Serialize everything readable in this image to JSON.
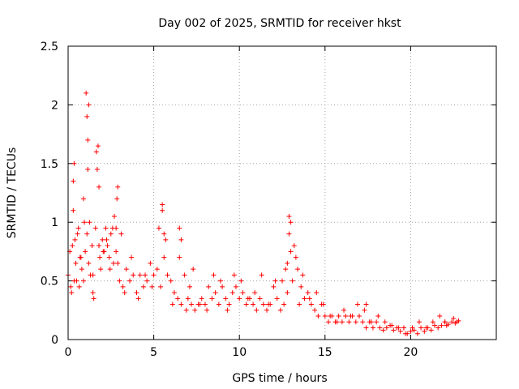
{
  "chart_data": {
    "type": "scatter",
    "title": "Day 002 of 2025, SRMTID for receiver hkst",
    "xlabel": "GPS time / hours",
    "ylabel": "SRMTID / TECUs",
    "xlim": [
      0,
      25
    ],
    "ylim": [
      0,
      2.5
    ],
    "x_ticks": [
      0,
      5,
      10,
      15,
      20
    ],
    "x_tick_labels": [
      "0",
      "5",
      "10",
      "15",
      "20"
    ],
    "y_ticks": [
      0,
      0.5,
      1,
      1.5,
      2,
      2.5
    ],
    "y_tick_labels": [
      "0",
      "0.5",
      "1",
      "1.5",
      "2",
      "2.5"
    ],
    "grid": true,
    "marker": "plus",
    "color": "#ff0000",
    "series": [
      {
        "name": "SRMTID",
        "x": [
          0.0,
          0.1,
          0.2,
          0.3,
          0.4,
          0.5,
          0.6,
          0.7,
          0.8,
          0.9,
          1.0,
          1.1,
          1.2,
          1.3,
          1.4,
          1.5,
          1.6,
          1.7,
          1.8,
          1.9,
          2.0,
          2.1,
          2.2,
          2.3,
          2.4,
          2.5,
          2.6,
          2.7,
          2.8,
          2.9,
          3.0,
          3.2,
          3.4,
          3.6,
          3.8,
          4.0,
          4.2,
          4.4,
          4.6,
          4.8,
          5.0,
          5.2,
          5.4,
          5.6,
          5.8,
          6.0,
          6.2,
          6.4,
          6.6,
          6.8,
          7.0,
          7.2,
          7.4,
          7.6,
          7.8,
          8.0,
          8.2,
          8.4,
          8.6,
          8.8,
          9.0,
          9.2,
          9.4,
          9.6,
          9.8,
          10.0,
          10.2,
          10.4,
          10.6,
          10.8,
          11.0,
          11.2,
          11.4,
          11.6,
          11.8,
          12.0,
          12.2,
          12.4,
          12.6,
          12.8,
          13.0,
          13.2,
          13.4,
          13.6,
          13.8,
          14.0,
          14.2,
          14.4,
          14.6,
          14.8,
          15.0,
          15.2,
          15.4,
          15.6,
          15.8,
          16.0,
          16.2,
          16.4,
          16.6,
          16.8,
          17.0,
          17.2,
          17.4,
          17.6,
          17.8,
          18.0,
          18.2,
          18.4,
          18.6,
          18.8,
          19.0,
          19.2,
          19.4,
          19.6,
          19.8,
          20.0,
          20.2,
          20.4,
          20.6,
          20.8,
          21.0,
          21.2,
          21.4,
          21.6,
          21.8,
          22.0,
          22.2,
          22.4,
          22.6,
          22.8,
          0.15,
          0.35,
          0.55,
          0.75,
          0.95,
          1.05,
          1.15,
          1.25,
          1.45,
          1.65,
          1.85,
          2.05,
          2.25,
          2.45,
          2.65,
          2.85,
          0.25,
          0.45,
          1.1,
          1.15,
          1.2,
          0.3,
          0.35,
          1.75,
          1.8,
          0.65,
          0.9,
          1.45,
          2.8,
          2.9,
          3.3,
          3.7,
          4.1,
          4.5,
          4.9,
          5.3,
          5.5,
          5.7,
          6.1,
          6.5,
          6.9,
          7.3,
          7.7,
          8.1,
          8.5,
          8.9,
          9.3,
          9.7,
          10.1,
          10.5,
          10.9,
          11.3,
          11.7,
          12.1,
          12.5,
          12.7,
          12.9,
          13.1,
          13.3,
          13.5,
          13.7,
          14.1,
          14.5,
          14.9,
          15.3,
          15.7,
          16.1,
          16.5,
          16.9,
          17.3,
          17.7,
          18.1,
          18.5,
          18.9,
          19.3,
          19.7,
          20.1,
          20.5,
          20.9,
          21.3,
          21.7,
          22.1,
          22.5,
          22.7,
          5.5,
          5.6,
          6.5,
          6.6,
          7.1,
          3.1,
          12.8,
          12.9,
          13.0,
          17.4,
          19.6,
          22.0
        ],
        "y": [
          0.55,
          0.75,
          0.4,
          1.1,
          0.85,
          0.5,
          0.95,
          0.7,
          0.6,
          1.2,
          0.75,
          1.9,
          0.65,
          0.55,
          0.8,
          0.35,
          0.95,
          1.45,
          0.8,
          0.6,
          0.85,
          0.75,
          0.95,
          0.8,
          0.7,
          0.9,
          0.95,
          1.05,
          0.75,
          0.65,
          0.5,
          0.45,
          0.6,
          0.5,
          0.55,
          0.4,
          0.55,
          0.45,
          0.5,
          0.65,
          0.55,
          0.6,
          0.45,
          0.7,
          0.55,
          0.5,
          0.4,
          0.35,
          0.3,
          0.55,
          0.35,
          0.3,
          0.25,
          0.3,
          0.35,
          0.3,
          0.45,
          0.35,
          0.4,
          0.3,
          0.45,
          0.35,
          0.3,
          0.4,
          0.45,
          0.35,
          0.4,
          0.3,
          0.35,
          0.3,
          0.25,
          0.35,
          0.3,
          0.25,
          0.3,
          0.45,
          0.35,
          0.25,
          0.3,
          0.4,
          0.75,
          0.8,
          0.6,
          0.45,
          0.35,
          0.4,
          0.3,
          0.25,
          0.2,
          0.3,
          0.2,
          0.15,
          0.2,
          0.15,
          0.2,
          0.15,
          0.2,
          0.15,
          0.2,
          0.15,
          0.2,
          0.15,
          0.1,
          0.15,
          0.1,
          0.15,
          0.1,
          0.08,
          0.1,
          0.12,
          0.08,
          0.1,
          0.07,
          0.1,
          0.05,
          0.07,
          0.08,
          0.05,
          0.1,
          0.07,
          0.1,
          0.08,
          0.12,
          0.1,
          0.12,
          0.15,
          0.13,
          0.15,
          0.14,
          0.16,
          0.45,
          1.5,
          0.9,
          0.7,
          1.0,
          2.1,
          1.7,
          1.0,
          0.4,
          1.6,
          0.7,
          0.75,
          0.85,
          0.6,
          0.65,
          1.2,
          0.8,
          0.65,
          0.9,
          1.45,
          2.0,
          1.35,
          0.5,
          1.65,
          1.3,
          0.45,
          0.5,
          0.55,
          0.95,
          1.3,
          0.4,
          0.7,
          0.35,
          0.55,
          0.45,
          0.95,
          1.15,
          0.85,
          0.3,
          0.7,
          0.25,
          0.6,
          0.3,
          0.25,
          0.55,
          0.5,
          0.25,
          0.55,
          0.5,
          0.35,
          0.4,
          0.55,
          0.3,
          0.5,
          0.5,
          0.6,
          1.05,
          0.5,
          0.7,
          0.3,
          0.55,
          0.35,
          0.4,
          0.3,
          0.2,
          0.15,
          0.25,
          0.2,
          0.3,
          0.25,
          0.15,
          0.2,
          0.15,
          0.12,
          0.1,
          0.05,
          0.1,
          0.15,
          0.1,
          0.15,
          0.2,
          0.12,
          0.18,
          0.15,
          1.1,
          0.9,
          0.95,
          0.85,
          0.45,
          0.9,
          0.65,
          0.9,
          1.0,
          0.3,
          0.1,
          0.15
        ]
      }
    ]
  }
}
